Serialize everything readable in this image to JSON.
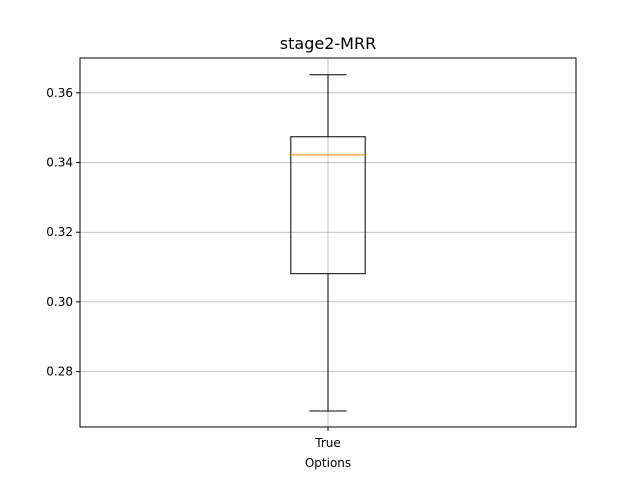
{
  "chart_data": {
    "type": "box",
    "title": "stage2-MRR",
    "xlabel": "Options",
    "ylabel": "",
    "categories": [
      "True"
    ],
    "boxes": [
      {
        "category": "True",
        "whisker_low": 0.2687,
        "q1": 0.3081,
        "median": 0.3422,
        "q3": 0.3474,
        "whisker_high": 0.3652
      }
    ],
    "ylim": [
      0.2641,
      0.37
    ],
    "yticks": [
      0.28,
      0.3,
      0.32,
      0.34,
      0.36
    ],
    "ytick_labels": [
      "0.28",
      "0.30",
      "0.32",
      "0.34",
      "0.36"
    ],
    "grid": true,
    "colors": {
      "box": "#000000",
      "median": "#ff7f0e",
      "grid": "#b0b0b0",
      "axes": "#000000"
    }
  }
}
